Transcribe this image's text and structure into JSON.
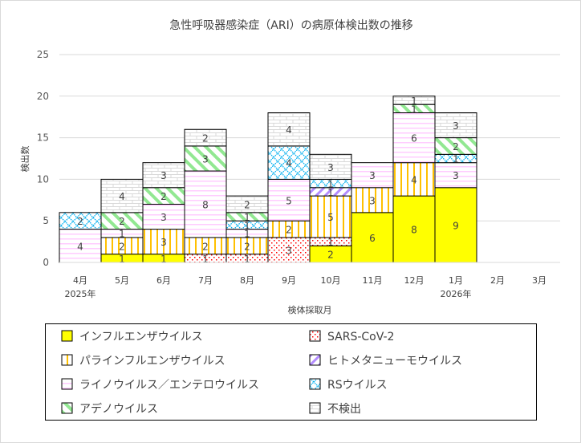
{
  "chart_data": {
    "type": "bar",
    "stacked": true,
    "title": "急性呼吸器感染症（ARI）の病原体検出数の推移",
    "xlabel": "検体採取月",
    "ylabel": "検出数",
    "ylim": [
      0,
      25
    ],
    "yticks": [
      0,
      5,
      10,
      15,
      20,
      25
    ],
    "grid": true,
    "legend_position": "bottom",
    "categories": [
      "4月",
      "5月",
      "6月",
      "7月",
      "8月",
      "9月",
      "10月",
      "11月",
      "12月",
      "1月",
      "2月",
      "3月"
    ],
    "year_labels": {
      "0": "2025年",
      "9": "2026年"
    },
    "series": [
      {
        "name": "インフルエンザウイルス",
        "color": "#ffff00",
        "pattern": "solid",
        "values": [
          0,
          1,
          1,
          0,
          0,
          0,
          2,
          6,
          8,
          9,
          0,
          0
        ]
      },
      {
        "name": "SARS-CoV-2",
        "color": "#ff0000",
        "pattern": "dots",
        "values": [
          0,
          0,
          0,
          1,
          1,
          3,
          1,
          0,
          0,
          0,
          0,
          0
        ]
      },
      {
        "name": "パラインフルエンザウイルス",
        "color": "#ffc000",
        "pattern": "vertical",
        "values": [
          0,
          2,
          3,
          2,
          2,
          2,
          5,
          3,
          4,
          0,
          0,
          0
        ]
      },
      {
        "name": "ヒトメタニューモウイルス",
        "color": "#b38cff",
        "pattern": "diagonal-up",
        "values": [
          0,
          0,
          0,
          0,
          0,
          0,
          1,
          0,
          0,
          0,
          0,
          0
        ]
      },
      {
        "name": "ライノウイルス／エンテロウイルス",
        "color": "#ffccff",
        "pattern": "horizontal",
        "values": [
          4,
          1,
          3,
          8,
          1,
          5,
          0,
          3,
          6,
          3,
          0,
          0
        ]
      },
      {
        "name": "RSウイルス",
        "color": "#00b0f0",
        "pattern": "diamond",
        "values": [
          2,
          0,
          0,
          0,
          1,
          4,
          1,
          0,
          0,
          1,
          0,
          0
        ]
      },
      {
        "name": "アデノウイルス",
        "color": "#92e892",
        "pattern": "diagonal-down",
        "values": [
          0,
          2,
          2,
          3,
          1,
          0,
          0,
          0,
          1,
          2,
          0,
          0
        ]
      },
      {
        "name": "不検出",
        "color": "#d9d9d9",
        "pattern": "brick",
        "values": [
          0,
          4,
          3,
          2,
          2,
          4,
          3,
          0,
          1,
          3,
          0,
          0
        ]
      }
    ]
  }
}
